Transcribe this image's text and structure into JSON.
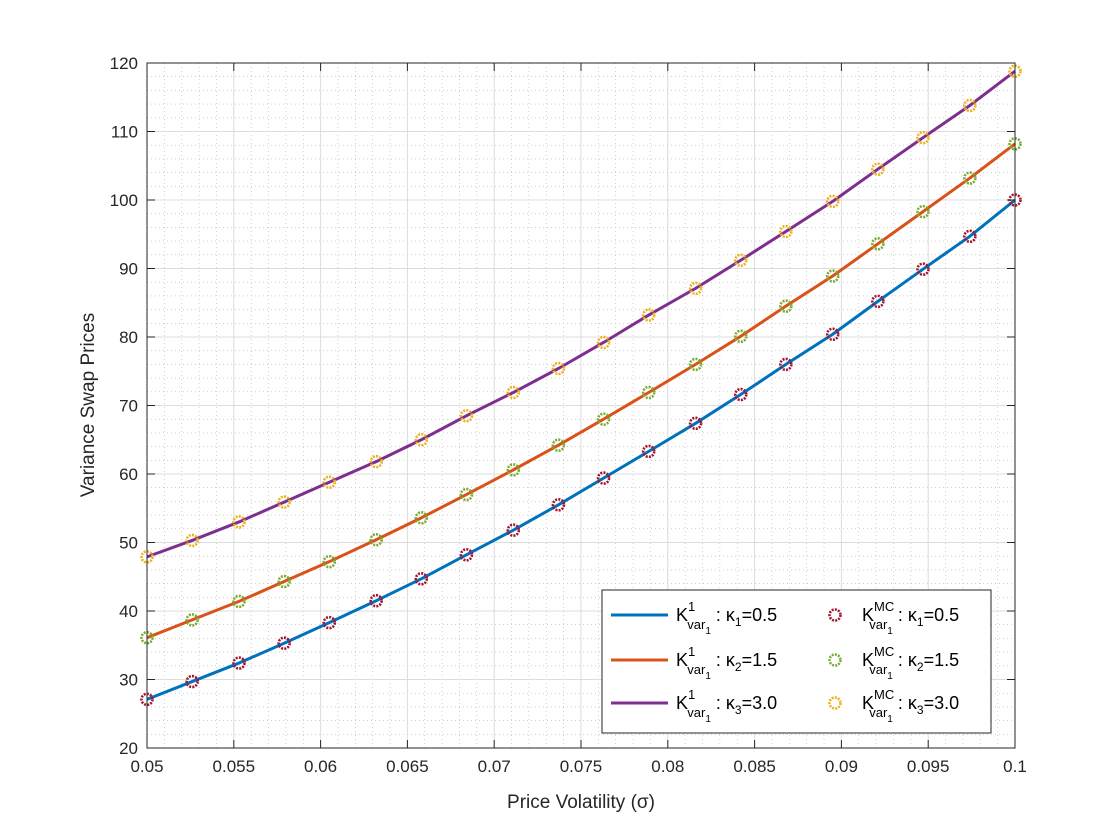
{
  "chart_data": {
    "type": "line",
    "xlabel": "Price Volatility (σ)",
    "ylabel": "Variance Swap Prices",
    "xlim": [
      0.05,
      0.1
    ],
    "ylim": [
      20,
      120
    ],
    "x_ticks": [
      0.05,
      0.055,
      0.06,
      0.065,
      0.07,
      0.075,
      0.08,
      0.085,
      0.09,
      0.095,
      0.1
    ],
    "x_tick_labels": [
      "0.05",
      "0.055",
      "0.06",
      "0.065",
      "0.07",
      "0.075",
      "0.08",
      "0.085",
      "0.09",
      "0.095",
      "0.1"
    ],
    "y_ticks": [
      20,
      30,
      40,
      50,
      60,
      70,
      80,
      90,
      100,
      110,
      120
    ],
    "y_tick_labels": [
      "20",
      "30",
      "40",
      "50",
      "60",
      "70",
      "80",
      "90",
      "100",
      "110",
      "120"
    ],
    "grid": true,
    "minor_grid": true,
    "legend_position": "bottom-right",
    "legend_columns": 2,
    "x": [
      0.05,
      0.0526,
      0.0553,
      0.0579,
      0.0605,
      0.0632,
      0.0658,
      0.0684,
      0.0711,
      0.0737,
      0.0763,
      0.0789,
      0.0816,
      0.0842,
      0.0868,
      0.0895,
      0.0921,
      0.0947,
      0.0974,
      0.1
    ],
    "series": [
      {
        "name": "K^1_{var_1} : κ_1=0.5",
        "label_main": "K",
        "label_sup": "1",
        "label_sub": "var",
        "label_subsub": "1",
        "label_tail": " : κ",
        "label_tail_sub": "1",
        "label_end": "=0.5",
        "kind": "line",
        "color": "#0072BD",
        "values": [
          27.1,
          29.7,
          32.4,
          35.3,
          38.3,
          41.5,
          44.7,
          48.2,
          51.8,
          55.5,
          59.4,
          63.3,
          67.4,
          71.6,
          76.0,
          80.4,
          85.2,
          89.9,
          94.7,
          100.0
        ]
      },
      {
        "name": "K^1_{var_1} : κ_2=1.5",
        "label_main": "K",
        "label_sup": "1",
        "label_sub": "var",
        "label_subsub": "1",
        "label_tail": " : κ",
        "label_tail_sub": "2",
        "label_end": "=1.5",
        "kind": "line",
        "color": "#D95319",
        "values": [
          36.1,
          38.7,
          41.4,
          44.3,
          47.2,
          50.4,
          53.6,
          57.0,
          60.6,
          64.2,
          68.0,
          71.9,
          76.0,
          80.1,
          84.5,
          88.9,
          93.6,
          98.3,
          103.2,
          108.2
        ]
      },
      {
        "name": "K^1_{var_1} : κ_3=3.0",
        "label_main": "K",
        "label_sup": "1",
        "label_sub": "var",
        "label_subsub": "1",
        "label_tail": " : κ",
        "label_tail_sub": "3",
        "label_end": "=3.0",
        "kind": "line",
        "color": "#7E2F8E",
        "values": [
          47.9,
          50.3,
          53.0,
          55.9,
          58.8,
          61.8,
          65.0,
          68.5,
          71.9,
          75.4,
          79.2,
          83.2,
          87.1,
          91.2,
          95.4,
          99.8,
          104.5,
          109.1,
          113.8,
          118.8
        ]
      },
      {
        "name": "K^MC_{var_1} : κ_1=0.5",
        "label_main": "K",
        "label_sup": "MC",
        "label_sub": "var",
        "label_subsub": "1",
        "label_tail": " : κ",
        "label_tail_sub": "1",
        "label_end": "=0.5",
        "kind": "marker",
        "color": "#A2142F",
        "values": [
          27.1,
          29.7,
          32.4,
          35.3,
          38.3,
          41.5,
          44.7,
          48.2,
          51.8,
          55.5,
          59.4,
          63.3,
          67.4,
          71.6,
          76.0,
          80.4,
          85.2,
          89.9,
          94.7,
          100.0
        ]
      },
      {
        "name": "K^MC_{var_1} : κ_2=1.5",
        "label_main": "K",
        "label_sup": "MC",
        "label_sub": "var",
        "label_subsub": "1",
        "label_tail": " : κ",
        "label_tail_sub": "2",
        "label_end": "=1.5",
        "kind": "marker",
        "color": "#77AC30",
        "values": [
          36.1,
          38.7,
          41.4,
          44.3,
          47.2,
          50.4,
          53.6,
          57.0,
          60.6,
          64.2,
          68.0,
          71.9,
          76.0,
          80.1,
          84.5,
          88.9,
          93.6,
          98.3,
          103.2,
          108.2
        ]
      },
      {
        "name": "K^MC_{var_1} : κ_3=3.0",
        "label_main": "K",
        "label_sup": "MC",
        "label_sub": "var",
        "label_subsub": "1",
        "label_tail": " : κ",
        "label_tail_sub": "3",
        "label_end": "=3.0",
        "kind": "marker",
        "color": "#EDB120",
        "values": [
          47.9,
          50.3,
          53.0,
          55.9,
          58.8,
          61.8,
          65.0,
          68.5,
          71.9,
          75.4,
          79.2,
          83.2,
          87.1,
          91.2,
          95.4,
          99.8,
          104.5,
          109.1,
          113.8,
          118.8
        ]
      }
    ]
  }
}
